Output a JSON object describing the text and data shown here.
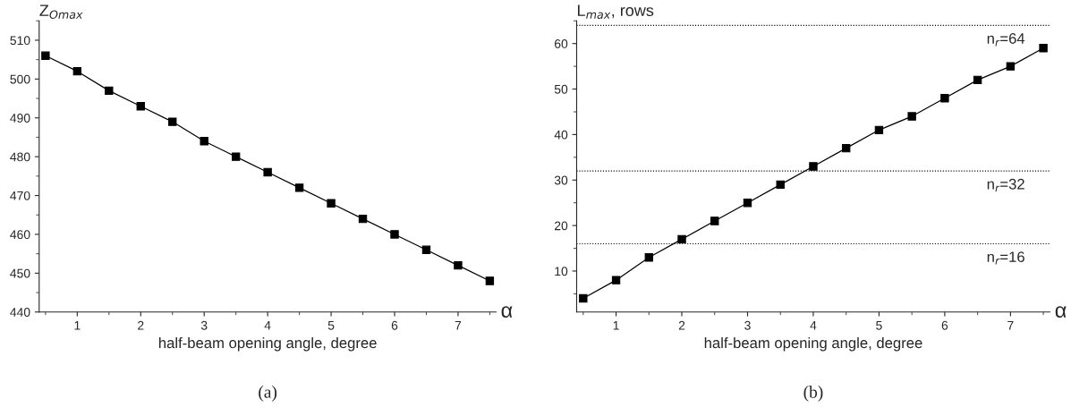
{
  "chart_data": [
    {
      "type": "line",
      "xlabel": "half-beam opening angle, degree",
      "ylabel": "Z$_{Omax}$",
      "annotations": [
        "α",
        "(a)"
      ],
      "marker": "square",
      "line_style": "solid",
      "grid": false,
      "legend": false,
      "xlim": [
        0.4,
        7.6
      ],
      "ylim": [
        440,
        515
      ],
      "xticks": [
        1,
        2,
        3,
        4,
        5,
        6,
        7
      ],
      "yticks": [
        440,
        450,
        460,
        470,
        480,
        490,
        500,
        510
      ],
      "x": [
        0.5,
        1,
        1.5,
        2,
        2.5,
        3,
        3.5,
        4,
        4.5,
        5,
        5.5,
        6,
        6.5,
        7,
        7.5
      ],
      "series": [
        {
          "color": "#000000",
          "values": [
            506,
            502,
            497,
            493,
            489,
            484,
            480,
            476,
            472,
            468,
            464,
            460,
            456,
            452,
            448
          ]
        }
      ]
    },
    {
      "type": "line",
      "xlabel": "half-beam opening angle, degree",
      "ylabel": "L$_{max}$, rows",
      "annotations": [
        "α",
        "(b)"
      ],
      "marker": "square",
      "line_style": "solid",
      "grid": false,
      "legend": false,
      "xlim": [
        0.4,
        7.6
      ],
      "ylim": [
        1,
        65
      ],
      "xticks": [
        1,
        2,
        3,
        4,
        5,
        6,
        7
      ],
      "yticks": [
        10,
        20,
        30,
        40,
        50,
        60
      ],
      "x": [
        0.5,
        1,
        1.5,
        2,
        2.5,
        3,
        3.5,
        4,
        4.5,
        5,
        5.5,
        6,
        6.5,
        7,
        7.5
      ],
      "series": [
        {
          "color": "#000000",
          "values": [
            4,
            8,
            13,
            17,
            21,
            25,
            29,
            33,
            37,
            41,
            44,
            48,
            52,
            55,
            59
          ]
        }
      ],
      "ref_lines": [
        {
          "axis": "y",
          "value": 64,
          "label": "n$_{r}$=64",
          "color": "#000000",
          "line_style": "dotted"
        },
        {
          "axis": "y",
          "value": 32,
          "label": "n$_{r}$=32",
          "color": "#000000",
          "line_style": "dotted"
        },
        {
          "axis": "y",
          "value": 16,
          "label": "n$_{r}$=16",
          "color": "#000000",
          "line_style": "dotted"
        }
      ]
    }
  ]
}
